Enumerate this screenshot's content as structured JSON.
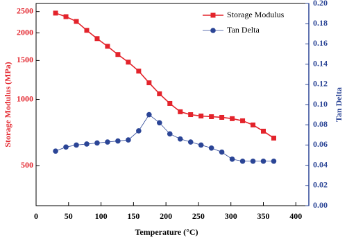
{
  "chart_data": {
    "type": "line",
    "x_label": "Temperature (°C)",
    "y_label": "Storage Modulus (MPa)",
    "y2_label": "Tan Delta",
    "x": [
      30,
      46,
      62,
      78,
      94,
      110,
      126,
      142,
      158,
      174,
      190,
      206,
      222,
      238,
      254,
      270,
      286,
      302,
      318,
      334,
      350,
      366
    ],
    "series": [
      {
        "name": "Storage Modulus",
        "color": "#e3232b",
        "marker": "square",
        "values": [
          2460,
          2370,
          2255,
          2055,
          1885,
          1740,
          1597,
          1475,
          1343,
          1189,
          1060,
          958,
          879,
          853,
          841,
          835,
          829,
          818,
          800,
          766,
          718,
          668
        ]
      },
      {
        "name": "Tan Delta",
        "color": "#2b4596",
        "marker": "circle",
        "axis": "y2",
        "values": [
          0.054,
          0.058,
          0.06,
          0.061,
          0.062,
          0.063,
          0.064,
          0.065,
          0.074,
          0.09,
          0.082,
          0.071,
          0.066,
          0.063,
          0.06,
          0.057,
          0.053,
          0.046,
          0.044,
          0.044,
          0.044,
          0.044
        ]
      }
    ],
    "xlim": [
      0,
      420
    ],
    "xticks": [
      0,
      50,
      100,
      150,
      200,
      250,
      300,
      350,
      400
    ],
    "ylim": [
      330,
      2720
    ],
    "y_scale": "log",
    "yticks": [
      500,
      1000,
      1500,
      2000,
      2500
    ],
    "y2lim": [
      0,
      0.2
    ],
    "y2ticks": [
      {
        "value": 0,
        "label": "0.00"
      },
      {
        "value": 0.02,
        "label": "0.02"
      },
      {
        "value": 0.04,
        "label": "0.04"
      },
      {
        "value": 0.06,
        "label": "0.06"
      },
      {
        "value": 0.08,
        "label": "0.08"
      },
      {
        "value": 0.1,
        "label": "0.10"
      },
      {
        "value": 0.12,
        "label": "0.12"
      },
      {
        "value": 0.14,
        "label": "0.14"
      },
      {
        "value": 0.16,
        "label": "0.16"
      },
      {
        "value": 0.18,
        "label": "0.18"
      },
      {
        "value": 0.2,
        "label": "0.20"
      }
    ],
    "legend": "top-right"
  }
}
